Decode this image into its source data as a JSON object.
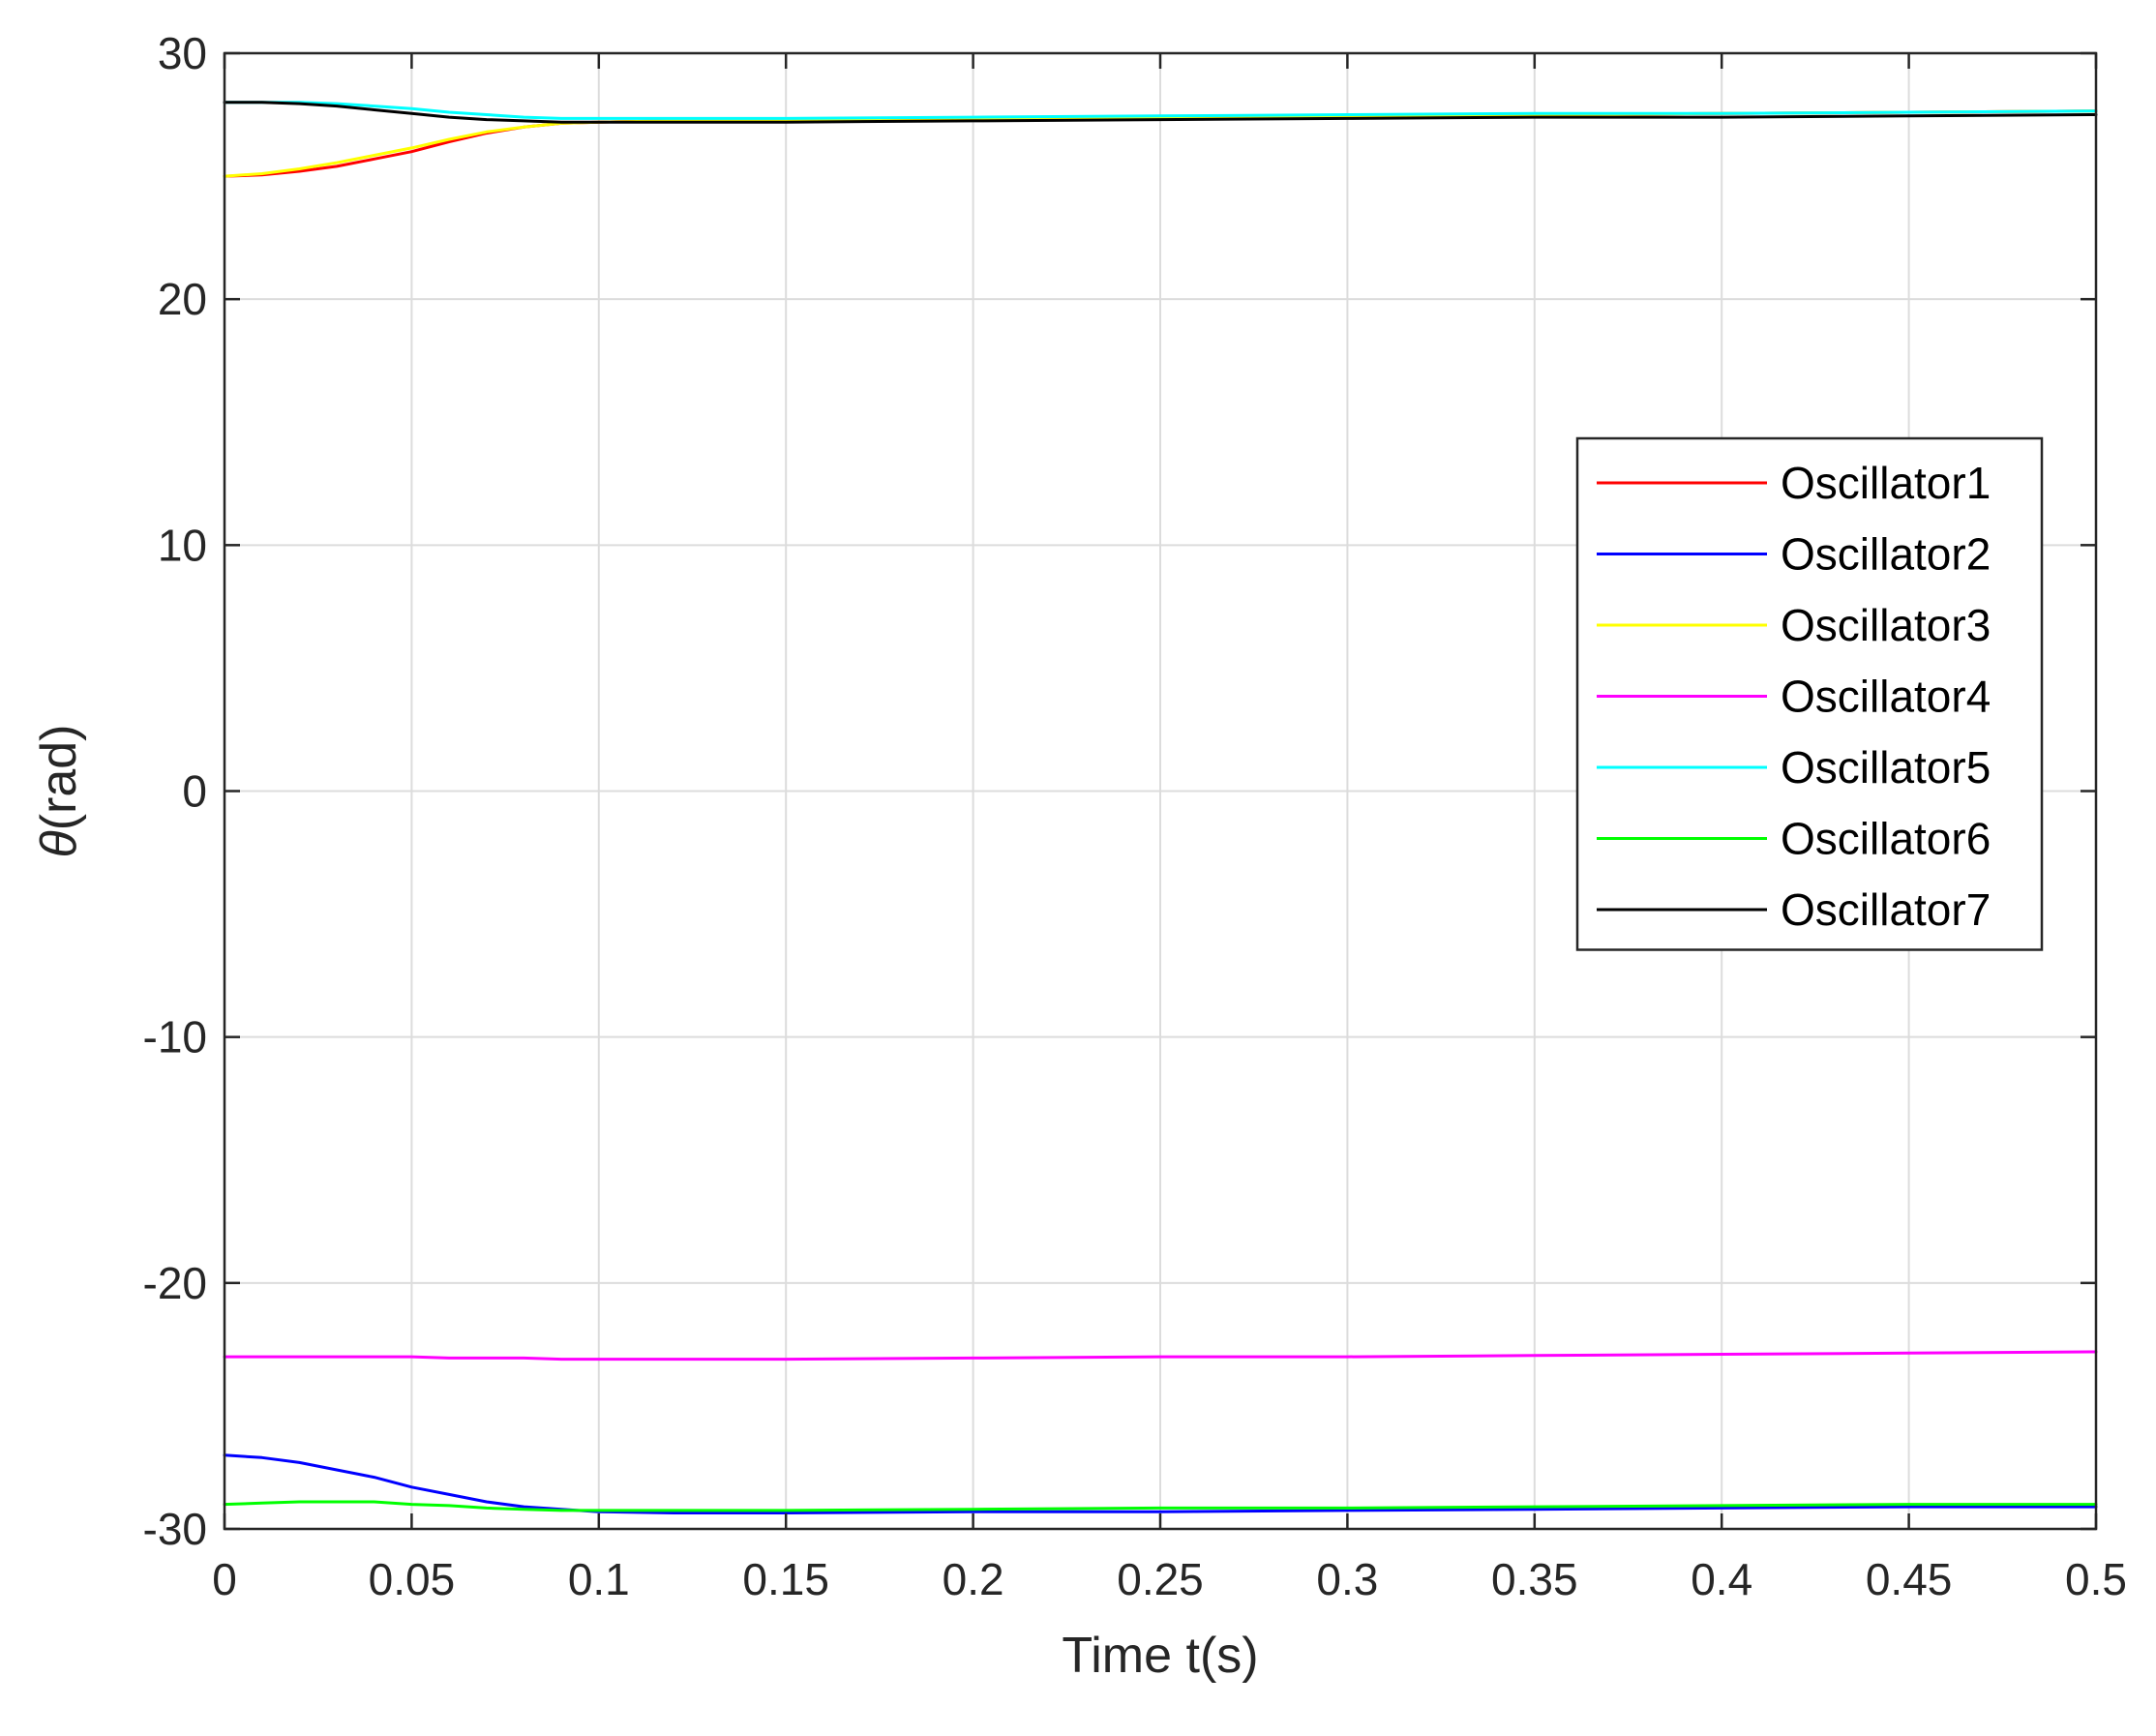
{
  "chart_data": {
    "type": "line",
    "title": "",
    "xlabel": "Time t(s)",
    "ylabel_symbol": "θ",
    "ylabel_unit": "(rad)",
    "xlim": [
      0,
      0.5
    ],
    "ylim": [
      -30,
      30
    ],
    "xticks": [
      0,
      0.05,
      0.1,
      0.15,
      0.2,
      0.25,
      0.3,
      0.35,
      0.4,
      0.45,
      0.5
    ],
    "xtick_labels": [
      "0",
      "0.05",
      "0.1",
      "0.15",
      "0.2",
      "0.25",
      "0.3",
      "0.35",
      "0.4",
      "0.45",
      "0.5"
    ],
    "yticks": [
      -30,
      -20,
      -10,
      0,
      10,
      20,
      30
    ],
    "ytick_labels": [
      "-30",
      "-20",
      "-10",
      "0",
      "10",
      "20",
      "30"
    ],
    "grid": true,
    "legend_position": "right",
    "x": [
      0,
      0.01,
      0.02,
      0.03,
      0.04,
      0.05,
      0.06,
      0.07,
      0.08,
      0.09,
      0.1,
      0.12,
      0.15,
      0.2,
      0.25,
      0.3,
      0.35,
      0.4,
      0.45,
      0.5
    ],
    "series": [
      {
        "name": "Oscillator1",
        "color": "#ff0000",
        "values": [
          25.0,
          25.05,
          25.2,
          25.4,
          25.7,
          26.0,
          26.4,
          26.75,
          27.0,
          27.15,
          27.2,
          27.25,
          27.3,
          27.35,
          27.4,
          27.45,
          27.5,
          27.55,
          27.6,
          27.65
        ]
      },
      {
        "name": "Oscillator2",
        "color": "#0000ff",
        "values": [
          -27.0,
          -27.1,
          -27.3,
          -27.6,
          -27.9,
          -28.3,
          -28.6,
          -28.9,
          -29.1,
          -29.2,
          -29.3,
          -29.35,
          -29.35,
          -29.3,
          -29.3,
          -29.25,
          -29.2,
          -29.15,
          -29.1,
          -29.1
        ]
      },
      {
        "name": "Oscillator3",
        "color": "#ffff00",
        "values": [
          25.0,
          25.1,
          25.3,
          25.55,
          25.85,
          26.15,
          26.5,
          26.8,
          27.0,
          27.15,
          27.2,
          27.25,
          27.3,
          27.35,
          27.4,
          27.45,
          27.5,
          27.55,
          27.6,
          27.65
        ]
      },
      {
        "name": "Oscillator4",
        "color": "#ff00ff",
        "values": [
          -23.0,
          -23.0,
          -23.0,
          -23.0,
          -23.0,
          -23.0,
          -23.05,
          -23.05,
          -23.05,
          -23.1,
          -23.1,
          -23.1,
          -23.1,
          -23.05,
          -23.0,
          -23.0,
          -22.95,
          -22.9,
          -22.85,
          -22.8
        ]
      },
      {
        "name": "Oscillator5",
        "color": "#00ffff",
        "values": [
          28.0,
          28.0,
          28.0,
          27.95,
          27.85,
          27.75,
          27.6,
          27.5,
          27.4,
          27.35,
          27.35,
          27.35,
          27.35,
          27.4,
          27.45,
          27.5,
          27.55,
          27.55,
          27.6,
          27.65
        ]
      },
      {
        "name": "Oscillator6",
        "color": "#00ff00",
        "values": [
          -29.0,
          -28.95,
          -28.9,
          -28.9,
          -28.9,
          -29.0,
          -29.05,
          -29.15,
          -29.2,
          -29.25,
          -29.25,
          -29.25,
          -29.25,
          -29.2,
          -29.15,
          -29.15,
          -29.1,
          -29.05,
          -29.0,
          -29.0
        ]
      },
      {
        "name": "Oscillator7",
        "color": "#000000",
        "values": [
          28.0,
          28.0,
          27.95,
          27.85,
          27.7,
          27.55,
          27.4,
          27.3,
          27.25,
          27.2,
          27.2,
          27.2,
          27.2,
          27.25,
          27.3,
          27.35,
          27.4,
          27.4,
          27.45,
          27.5
        ]
      }
    ]
  }
}
